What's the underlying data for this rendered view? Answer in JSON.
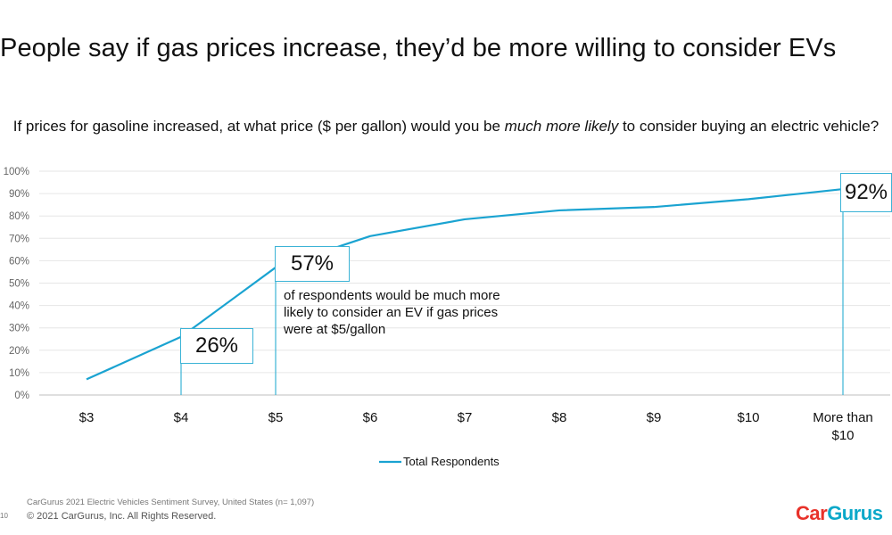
{
  "slide": {
    "title": "People say if gas prices increase, they’d be more willing to consider EVs",
    "question_part1": "If prices for gasoline increased, at what price ($ per gallon) would you be ",
    "question_emphasis": "much more likely",
    "question_part2": " to consider buying an electric vehicle?"
  },
  "chart_data": {
    "type": "line",
    "title": "",
    "xlabel": "",
    "ylabel": "",
    "categories": [
      "$3",
      "$4",
      "$5",
      "$6",
      "$7",
      "$8",
      "$9",
      "$10",
      "More than $10"
    ],
    "series": [
      {
        "name": "Total Respondents",
        "color": "#1aa3d1",
        "values": [
          7,
          26,
          57,
          71,
          78.5,
          82.5,
          84,
          87.5,
          92
        ]
      }
    ],
    "ylim": [
      0,
      100
    ],
    "y_ticks": [
      "0%",
      "10%",
      "20%",
      "30%",
      "40%",
      "50%",
      "60%",
      "70%",
      "80%",
      "90%",
      "100%"
    ],
    "grid": true,
    "legend": "bottom-center",
    "annotations": [
      {
        "category": "$4",
        "label": "26%"
      },
      {
        "category": "$5",
        "label": "57%",
        "note": "of respondents would be much more likely to consider an EV if gas prices were at $5/gallon"
      },
      {
        "category": "More than $10",
        "label": "92%"
      }
    ]
  },
  "footer": {
    "source": "CarGurus 2021 Electric Vehicles Sentiment Survey, United States (n= 1,097)",
    "copyright": "© 2021 CarGurus, Inc.  All Rights Reserved.",
    "page_number": "10"
  },
  "logo": {
    "car": "Car",
    "gurus": "Gurus",
    "car_color": "#e8322a",
    "gurus_color": "#0aa8c9"
  },
  "colors": {
    "accent": "#1aa3d1",
    "callout_border": "#3bb3d6",
    "grid": "#e6e6e6"
  }
}
